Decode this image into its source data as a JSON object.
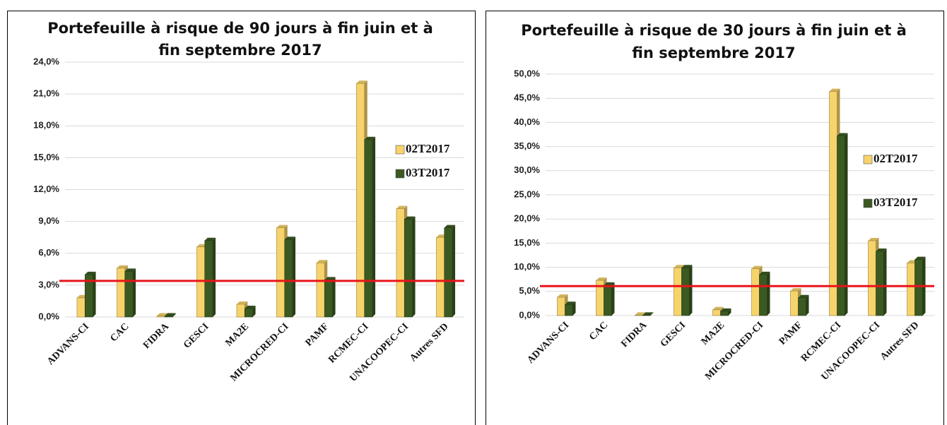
{
  "chart_data": [
    {
      "type": "bar",
      "title": [
        "Portefeuille à risque de 90 jours à fin juin et à",
        "fin septembre 2017"
      ],
      "categories": [
        "ADVANS-CI",
        "CAC",
        "FIDRA",
        "GESCI",
        "MA2E",
        "MICROCRED-CI",
        "PAMF",
        "RCMEC-CI",
        "UNACOOPEC-CI",
        "Autres SFD"
      ],
      "series": [
        {
          "name": "02T2017",
          "color": "#f7d36b",
          "values": [
            1.8,
            4.6,
            0.1,
            6.6,
            1.2,
            8.4,
            5.1,
            22.0,
            10.2,
            7.5
          ]
        },
        {
          "name": "03T2017",
          "color": "#3b5a22",
          "values": [
            4.0,
            4.3,
            0.1,
            7.2,
            0.8,
            7.3,
            3.5,
            16.7,
            9.2,
            8.4
          ]
        }
      ],
      "ylim": [
        0,
        24
      ],
      "yticks": [
        {
          "value": 0,
          "label": "0,0%"
        },
        {
          "value": 3,
          "label": "3,0%"
        },
        {
          "value": 6,
          "label": "6,0%"
        },
        {
          "value": 9,
          "label": "9,0%"
        },
        {
          "value": 12,
          "label": "12,0%"
        },
        {
          "value": 15,
          "label": "15,0%"
        },
        {
          "value": 18,
          "label": "18,0%"
        },
        {
          "value": 21,
          "label": "21,0%"
        },
        {
          "value": 24,
          "label": "24,0%"
        }
      ],
      "grid": true,
      "reference_line": {
        "value": 3.4,
        "color": "#e8141b"
      }
    },
    {
      "type": "bar",
      "title": [
        "Portefeuille à risque de 30 jours à fin juin et à",
        "fin septembre 2017"
      ],
      "categories": [
        "ADVANS-CI",
        "CAC",
        "FIDRA",
        "GESCI",
        "MA2E",
        "MICROCRED-CI",
        "PAMF",
        "RCMEC-CI",
        "UNACOOPEC-CI",
        "Autres SFD"
      ],
      "series": [
        {
          "name": "02T2017",
          "color": "#f7d36b",
          "values": [
            3.8,
            7.3,
            0.1,
            9.9,
            1.2,
            9.7,
            5.1,
            46.4,
            15.5,
            10.9
          ]
        },
        {
          "name": "03T2017",
          "color": "#3b5a22",
          "values": [
            2.3,
            6.3,
            0.1,
            9.9,
            0.9,
            8.5,
            3.7,
            37.2,
            13.3,
            11.6
          ]
        }
      ],
      "ylim": [
        0,
        50
      ],
      "yticks": [
        {
          "value": 0,
          "label": "0,0%"
        },
        {
          "value": 5,
          "label": "5,0%"
        },
        {
          "value": 10,
          "label": "10,0%"
        },
        {
          "value": 15,
          "label": "15,0%"
        },
        {
          "value": 20,
          "label": "20,0%"
        },
        {
          "value": 25,
          "label": "25,0%"
        },
        {
          "value": 30,
          "label": "30,0%"
        },
        {
          "value": 35,
          "label": "35,0%"
        },
        {
          "value": 40,
          "label": "40,0%"
        },
        {
          "value": 45,
          "label": "45,0%"
        },
        {
          "value": 50,
          "label": "50,0%"
        }
      ],
      "grid": true,
      "reference_line": {
        "value": 6.1,
        "color": "#e8141b"
      }
    }
  ]
}
